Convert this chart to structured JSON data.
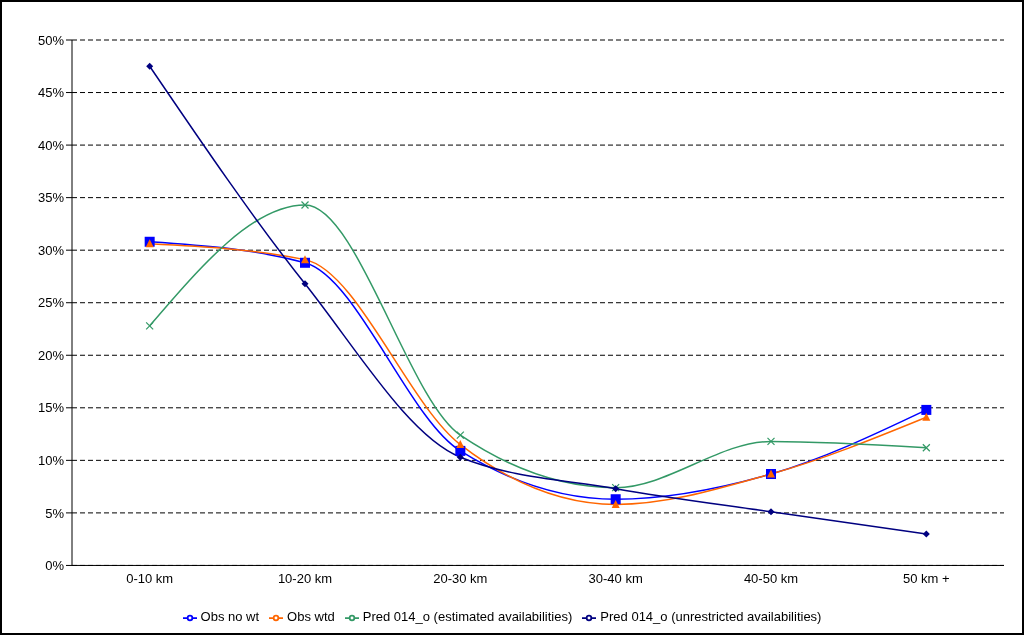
{
  "chart_data": {
    "type": "line",
    "categories": [
      "0-10 km",
      "10-20 km",
      "20-30 km",
      "30-40 km",
      "40-50 km",
      "50 km +"
    ],
    "ylim": [
      0,
      50
    ],
    "yticks": [
      {
        "value": 0,
        "label": "0%"
      },
      {
        "value": 5,
        "label": "5%"
      },
      {
        "value": 10,
        "label": "10%"
      },
      {
        "value": 15,
        "label": "15%"
      },
      {
        "value": 20,
        "label": "20%"
      },
      {
        "value": 25,
        "label": "25%"
      },
      {
        "value": 30,
        "label": "30%"
      },
      {
        "value": 35,
        "label": "35%"
      },
      {
        "value": 40,
        "label": "40%"
      },
      {
        "value": 45,
        "label": "45%"
      },
      {
        "value": 50,
        "label": "50%"
      }
    ],
    "grid": "y",
    "legend": "bottom",
    "series": [
      {
        "name": "Obs no wt",
        "color": "#0000ff",
        "marker": "square",
        "values": [
          30.8,
          28.8,
          10.9,
          6.3,
          8.7,
          14.8
        ]
      },
      {
        "name": "Obs wtd",
        "color": "#ff6600",
        "marker": "triangle",
        "values": [
          30.6,
          29.1,
          11.5,
          5.8,
          8.7,
          14.1
        ]
      },
      {
        "name": "Pred 014_o (estimated availabilities)",
        "color": "#339966",
        "marker": "cross",
        "values": [
          22.8,
          34.3,
          12.4,
          7.4,
          11.8,
          11.2
        ]
      },
      {
        "name": "Pred 014_o (unrestricted availabilities)",
        "color": "#000080",
        "marker": "diamond",
        "values": [
          47.5,
          26.8,
          10.3,
          7.3,
          5.1,
          3.0
        ]
      }
    ]
  }
}
